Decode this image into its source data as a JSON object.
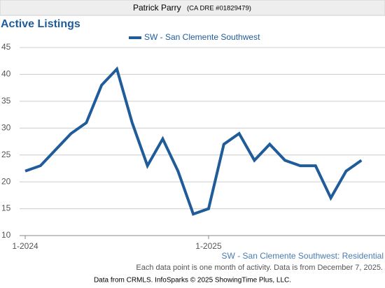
{
  "header": {
    "name": "Patrick Parry",
    "license": "(CA DRE #01829479)"
  },
  "chart_data": {
    "type": "line",
    "title": "Active Listings",
    "categories": [
      "1-2024",
      null,
      null,
      null,
      null,
      null,
      null,
      null,
      null,
      null,
      null,
      null,
      "1-2025",
      null,
      null,
      null,
      null,
      null,
      null,
      null,
      null,
      null,
      null
    ],
    "series": [
      {
        "name": "SW - San Clemente Southwest",
        "color": "#1f5c99",
        "values": [
          22,
          23,
          26,
          29,
          31,
          38,
          41,
          31,
          23,
          28,
          22,
          14,
          15,
          27,
          29,
          24,
          27,
          24,
          23,
          23,
          17,
          22,
          24
        ]
      }
    ],
    "ylim": [
      10,
      45
    ],
    "yticks": [
      10,
      15,
      20,
      25,
      30,
      35,
      40,
      45
    ],
    "grid": true,
    "legend": "top",
    "annotations": [
      "SW - San Clemente Southwest: Residential",
      "Each data point is one month of activity. Data is from December 7, 2025."
    ],
    "source": "Data from CRMLS. InfoSparks © 2025 ShowingTime Plus, LLC."
  }
}
